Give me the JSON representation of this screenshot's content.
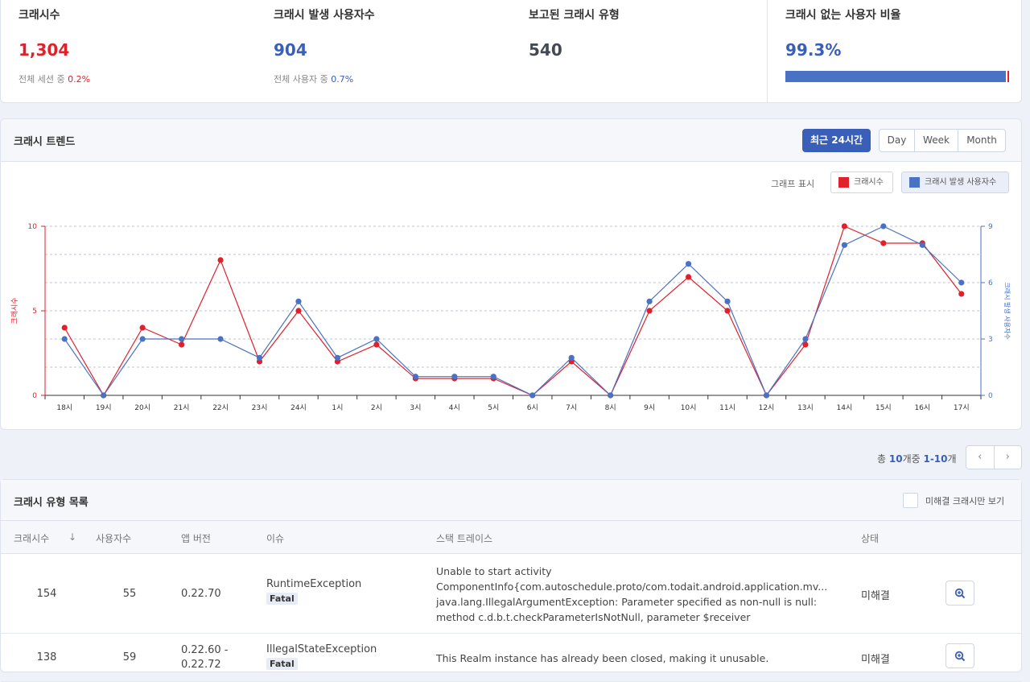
{
  "summary": {
    "crashes": {
      "label": "크래시수",
      "value": "1,304",
      "sub_prefix": "전체 세션 중 ",
      "sub_value": "0.2%",
      "color": "#e0202a"
    },
    "users": {
      "label": "크래시 발생 사용자수",
      "value": "904",
      "sub_prefix": "전체 사용자 중 ",
      "sub_value": "0.7%",
      "color": "#3a5fb8"
    },
    "types": {
      "label": "보고된 크래시 유형",
      "value": "540",
      "color": "#444a55"
    },
    "ratio": {
      "label": "크래시 없는 사용자 비율",
      "value": "99.3%",
      "color": "#3a5fb8",
      "fill": 0.993
    }
  },
  "trend": {
    "title": "크래시 트렌드",
    "range_active": "최근 24시간",
    "ranges": [
      "Day",
      "Week",
      "Month"
    ],
    "graph_label": "그래프 표시",
    "legend": [
      {
        "label": "크래시수",
        "color": "#e0202a"
      },
      {
        "label": "크래시 발생 사용자수",
        "color": "#4a72c4"
      }
    ]
  },
  "chart_data": {
    "type": "line",
    "categories": [
      "18시",
      "19시",
      "20시",
      "21시",
      "22시",
      "23시",
      "24시",
      "1시",
      "2시",
      "3시",
      "4시",
      "5시",
      "6시",
      "7시",
      "8시",
      "9시",
      "10시",
      "11시",
      "12시",
      "13시",
      "14시",
      "15시",
      "16시",
      "17시"
    ],
    "series": [
      {
        "name": "크래시수",
        "axis": "left",
        "color": "#e0202a",
        "values": [
          4,
          0,
          4,
          3,
          8,
          2,
          5,
          2,
          3,
          1,
          1,
          1,
          0,
          2,
          0,
          5,
          7,
          5,
          0,
          3,
          10,
          9,
          9,
          6
        ]
      },
      {
        "name": "크래시 발생 사용자수",
        "axis": "right",
        "color": "#4a72c4",
        "values": [
          3,
          0,
          3,
          3,
          3,
          2,
          5,
          2,
          3,
          1,
          1,
          1,
          0,
          2,
          0,
          5,
          7,
          5,
          0,
          3,
          8,
          9,
          8,
          6
        ]
      }
    ],
    "ylabel": "크래시수",
    "y2label": "크래시 발생 사용자수",
    "ylim": [
      0,
      10
    ],
    "y2lim": [
      0,
      9
    ],
    "yticks": [
      "0",
      "5",
      "10"
    ],
    "y2ticks": [
      "0",
      "3",
      "6",
      "9"
    ],
    "grid": true
  },
  "pagination": {
    "prefix": "총 ",
    "total": "10",
    "mid": "개중 ",
    "range": "1-10",
    "suffix": "개",
    "prev": "‹",
    "next": "›"
  },
  "list": {
    "title": "크래시 유형 목록",
    "filter_label": "미해결 크래시만 보기",
    "columns": {
      "crashes": "크래시수",
      "sort_icon": "↓",
      "users": "사용자수",
      "version": "앱 버전",
      "issue": "이슈",
      "stack": "스택 트레이스",
      "status": "상태"
    },
    "rows": [
      {
        "crashes": "154",
        "users": "55",
        "version": "0.22.70",
        "version2": "",
        "issue": "RuntimeException",
        "badge": "Fatal",
        "stack": [
          "Unable to start activity",
          "ComponentInfo{com.autoschedule.proto/com.todait.android.application.mv...",
          "java.lang.IllegalArgumentException: Parameter specified as non-null is null:",
          "method c.d.b.t.checkParameterIsNotNull, parameter $receiver"
        ],
        "status": "미해결"
      },
      {
        "crashes": "138",
        "users": "59",
        "version": "0.22.60 -",
        "version2": "0.22.72",
        "issue": "IllegalStateException",
        "badge": "Fatal",
        "stack": [
          "This Realm instance has already been closed, making it unusable."
        ],
        "status": "미해결"
      }
    ]
  }
}
